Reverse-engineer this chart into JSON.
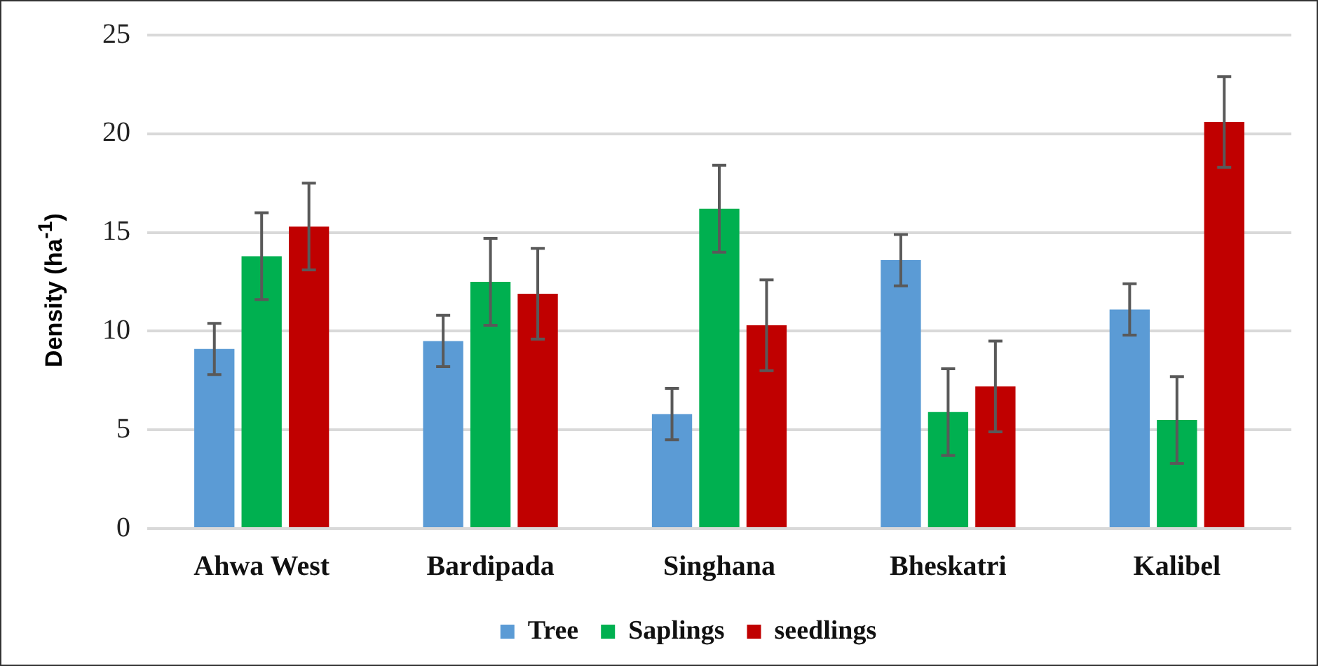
{
  "chart_data": {
    "type": "bar",
    "ylabel": "Density (ha$^{-1}$)",
    "categories": [
      "Ahwa West",
      "Bardipada",
      "Singhana",
      "Bheskatri",
      "Kalibel"
    ],
    "series": [
      {
        "name": "Tree",
        "color": "#5b9bd5",
        "values": [
          9.1,
          9.5,
          5.8,
          13.6,
          11.1
        ],
        "errors": [
          1.3,
          1.3,
          1.3,
          1.3,
          1.3
        ]
      },
      {
        "name": "Saplings",
        "color": "#00b050",
        "values": [
          13.8,
          12.5,
          16.2,
          5.9,
          5.5
        ],
        "errors": [
          2.2,
          2.2,
          2.2,
          2.2,
          2.2
        ]
      },
      {
        "name": "seedlings",
        "color": "#c00000",
        "values": [
          15.3,
          11.9,
          10.3,
          7.2,
          20.6
        ],
        "errors": [
          2.2,
          2.3,
          2.3,
          2.3,
          2.3
        ]
      }
    ],
    "ylim": [
      0,
      25
    ],
    "yticks": [
      0,
      5,
      10,
      15,
      20,
      25
    ],
    "grid": "y",
    "legend": "bottom"
  }
}
